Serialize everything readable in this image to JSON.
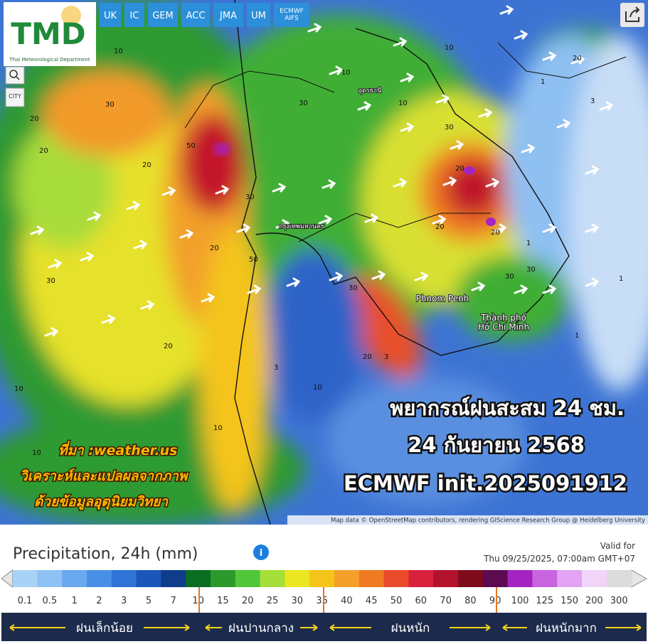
{
  "header": {
    "logo": "TMD",
    "logo_subtitle": "Thai Meteorological Department",
    "models": [
      "UK",
      "IC",
      "GEM",
      "ACC",
      "JMA",
      "UM",
      "ECMWF AIFS"
    ],
    "city_button": "CITY"
  },
  "map": {
    "places": [
      "Phnom Penh",
      "Thành phố",
      "Hồ Chí Minh",
      "กรุงเทพมหานคร",
      "อุดรธานี"
    ],
    "contour_labels": [
      "20",
      "30",
      "10",
      "20",
      "50",
      "30",
      "20",
      "30",
      "20",
      "10",
      "10",
      "20",
      "30",
      "50",
      "30",
      "20",
      "10",
      "30",
      "20",
      "10",
      "3",
      "1",
      "10",
      "20",
      "30",
      "30",
      "20",
      "10",
      "1",
      "3",
      "1",
      "10",
      "20",
      "3",
      "1"
    ],
    "attribution": "Map data © OpenStreetMap contributors, rendering GIScience Research Group @ Heidelberg University"
  },
  "overlay": {
    "title": "พยากรณ์ฝนสะสม 24 ชม.",
    "date": "24 กันยายน 2568",
    "model": "ECMWF init.2025091912"
  },
  "source": {
    "lines": [
      "ที่มา :weather.us",
      "วิเคราะห์และแปลผลจากภาพ",
      "ด้วยข้อมูลอุตุนิยมวิทยา"
    ]
  },
  "legend": {
    "title": "Precipitation, 24h (mm)",
    "valid_for": "Valid for",
    "valid_time": "Thu 09/25/2025, 07:00am GMT+07",
    "ticks": [
      0.1,
      0.5,
      1,
      2,
      3,
      5,
      7,
      10,
      15,
      20,
      25,
      30,
      35,
      40,
      45,
      50,
      60,
      70,
      80,
      90,
      100,
      125,
      150,
      200,
      300
    ],
    "colors": [
      "#a9d2f6",
      "#8ec2f4",
      "#6aa8ef",
      "#4a8fe6",
      "#2f74d6",
      "#1b57b8",
      "#103c8c",
      "#0b6e22",
      "#2b9a2b",
      "#50c63a",
      "#a4df3a",
      "#eae622",
      "#f4c41a",
      "#f4a02a",
      "#f07a22",
      "#ea4a2c",
      "#d8213c",
      "#b3122c",
      "#7e0b1c",
      "#5c0a52",
      "#a424c2",
      "#c864e0",
      "#e2a4f2",
      "#f2d4f8",
      "#dcdcdc"
    ],
    "categories": [
      "ฝนเล็กน้อย",
      "ฝนปานกลาง",
      "ฝนหนัก",
      "ฝนหนักมาก"
    ]
  }
}
